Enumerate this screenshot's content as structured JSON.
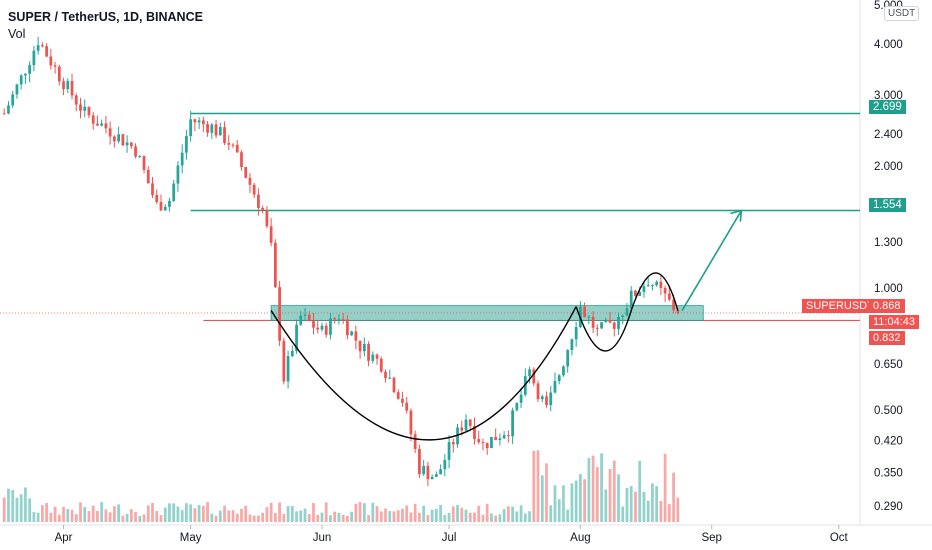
{
  "header": {
    "symbol": "SUPER / TetherUS, 1D, BINANCE",
    "indicator": "Vol"
  },
  "currency": "USDT",
  "colors": {
    "up": "#26a69a",
    "down": "#ef5350",
    "level": "#1e9e8c",
    "zone": "#6fc1b6",
    "current": "#f05350"
  },
  "price_axis": {
    "ticks": [
      "5.000",
      "4.000",
      "3.000",
      "2.400",
      "2.000",
      "1.300",
      "1.000",
      "0.650",
      "0.500",
      "0.420",
      "0.350",
      "0.290"
    ]
  },
  "time_axis": {
    "ticks": [
      "Apr",
      "May",
      "Jun",
      "Jul",
      "Aug",
      "Sep",
      "Oct"
    ]
  },
  "price_labels": {
    "resistance_high": "2.699",
    "target": "1.554",
    "current_tag": "SUPERUSDT",
    "current_price": "0.868",
    "countdown": "11:04:43",
    "support": "0.832"
  },
  "chart_data": {
    "type": "candlestick",
    "title": "SUPER / TetherUS, 1D, BINANCE",
    "scale": "log",
    "ylim": [
      0.26,
      5.0
    ],
    "x_range": [
      "2021-03-17",
      "2021-10-06"
    ],
    "levels": [
      2.699,
      1.554,
      0.832
    ],
    "zone": [
      0.832,
      0.905
    ],
    "pattern": "cup and handle",
    "projected_target": 1.554,
    "waypoints": [
      [
        "2021-03-18",
        2.7
      ],
      [
        "2021-03-22",
        3.3
      ],
      [
        "2021-03-26",
        4.1
      ],
      [
        "2021-03-31",
        3.35
      ],
      [
        "2021-04-06",
        2.7
      ],
      [
        "2021-04-12",
        2.45
      ],
      [
        "2021-04-18",
        2.2
      ],
      [
        "2021-04-23",
        1.6
      ],
      [
        "2021-04-26",
        1.65
      ],
      [
        "2021-05-01",
        2.6
      ],
      [
        "2021-05-06",
        2.5
      ],
      [
        "2021-05-10",
        2.3
      ],
      [
        "2021-05-14",
        1.9
      ],
      [
        "2021-05-18",
        1.55
      ],
      [
        "2021-05-20",
        1.25
      ],
      [
        "2021-05-23",
        0.6
      ],
      [
        "2021-05-27",
        0.85
      ],
      [
        "2021-06-01",
        0.78
      ],
      [
        "2021-06-05",
        0.86
      ],
      [
        "2021-06-10",
        0.72
      ],
      [
        "2021-06-15",
        0.65
      ],
      [
        "2021-06-20",
        0.53
      ],
      [
        "2021-06-24",
        0.36
      ],
      [
        "2021-06-28",
        0.34
      ],
      [
        "2021-07-01",
        0.4
      ],
      [
        "2021-07-05",
        0.48
      ],
      [
        "2021-07-09",
        0.41
      ],
      [
        "2021-07-15",
        0.45
      ],
      [
        "2021-07-20",
        0.62
      ],
      [
        "2021-07-24",
        0.5
      ],
      [
        "2021-07-28",
        0.66
      ],
      [
        "2021-08-01",
        0.9
      ],
      [
        "2021-08-05",
        0.78
      ],
      [
        "2021-08-09",
        0.82
      ],
      [
        "2021-08-13",
        0.95
      ],
      [
        "2021-08-17",
        1.05
      ],
      [
        "2021-08-21",
        0.95
      ],
      [
        "2021-08-24",
        0.868
      ]
    ]
  }
}
